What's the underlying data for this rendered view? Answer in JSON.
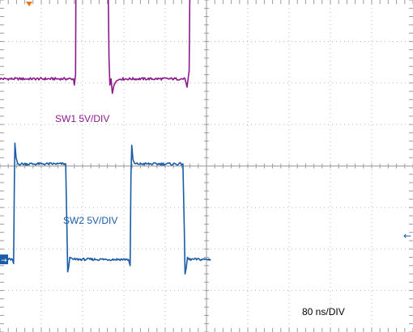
{
  "chart_data": {
    "type": "line",
    "timebase_label": "80 ns/DIV",
    "x": {
      "divisions": 10
    },
    "y": {
      "divisions": 8
    },
    "grid": true,
    "series": [
      {
        "name": "SW1 5V/DIV",
        "color": "#8b1a8b",
        "center_div": 6.1,
        "volts_per_div": 5,
        "points": [
          [
            0.0,
            0.0
          ],
          [
            1.78,
            0.0
          ],
          [
            1.8,
            -0.15
          ],
          [
            1.83,
            0.1
          ],
          [
            1.84,
            2.5
          ],
          [
            1.85,
            2.85
          ],
          [
            1.88,
            2.35
          ],
          [
            1.9,
            2.2
          ],
          [
            2.62,
            2.2
          ],
          [
            2.64,
            0.5
          ],
          [
            2.66,
            -0.15
          ],
          [
            2.69,
            0.0
          ],
          [
            2.72,
            -0.35
          ],
          [
            2.76,
            -0.15
          ],
          [
            2.82,
            -0.05
          ],
          [
            2.9,
            0.0
          ],
          [
            4.48,
            0.0
          ],
          [
            4.53,
            -0.2
          ],
          [
            4.58,
            0.2
          ],
          [
            4.6,
            2.5
          ],
          [
            4.62,
            2.85
          ],
          [
            4.66,
            2.3
          ],
          [
            4.7,
            2.2
          ],
          [
            5.1,
            2.2
          ]
        ]
      },
      {
        "name": "SW2 5V/DIV",
        "color": "#1a5ca8",
        "center_div": 1.75,
        "volts_per_div": 5,
        "points": [
          [
            0.0,
            0.0
          ],
          [
            0.3,
            0.0
          ],
          [
            0.33,
            -0.1
          ],
          [
            0.35,
            2.0
          ],
          [
            0.36,
            2.8
          ],
          [
            0.39,
            2.45
          ],
          [
            0.43,
            2.3
          ],
          [
            1.59,
            2.3
          ],
          [
            1.62,
            0.8
          ],
          [
            1.64,
            -0.3
          ],
          [
            1.66,
            -0.2
          ],
          [
            1.69,
            0.05
          ],
          [
            1.73,
            0.0
          ],
          [
            3.11,
            0.0
          ],
          [
            3.15,
            -0.15
          ],
          [
            3.17,
            2.0
          ],
          [
            3.19,
            2.75
          ],
          [
            3.22,
            2.4
          ],
          [
            3.26,
            2.3
          ],
          [
            4.43,
            2.3
          ],
          [
            4.46,
            0.8
          ],
          [
            4.48,
            -0.35
          ],
          [
            4.51,
            -0.2
          ],
          [
            4.54,
            0.05
          ],
          [
            4.58,
            0.0
          ],
          [
            5.1,
            0.0
          ]
        ]
      }
    ]
  },
  "markers": {
    "trigger_color": "#e87a1e",
    "ch2_marker_color": "#1a5ca8",
    "ch2_marker_symbol": "→",
    "ch2_right_arrow_symbol": "←"
  }
}
